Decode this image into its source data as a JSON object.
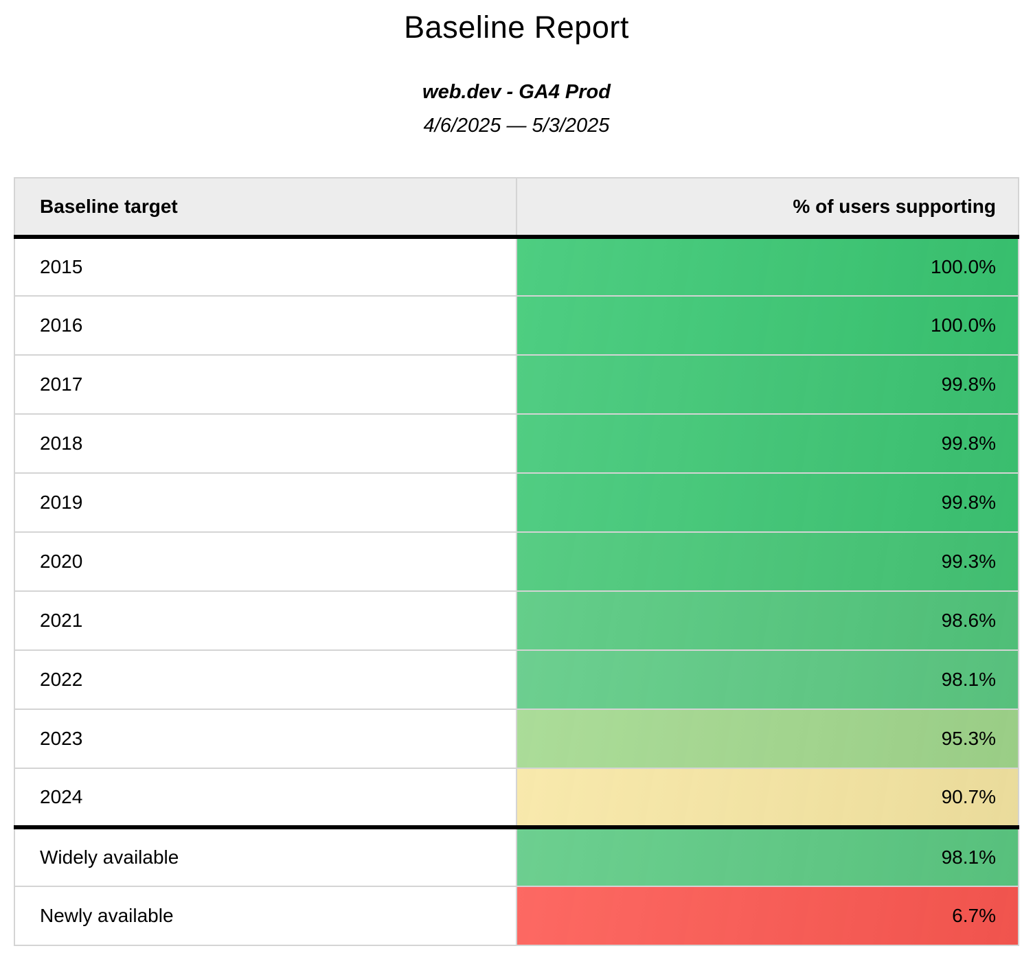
{
  "report": {
    "title": "Baseline Report",
    "subtitle": "web.dev - GA4 Prod",
    "date_range": "4/6/2025 — 5/3/2025"
  },
  "table": {
    "columns": [
      "Baseline target",
      "% of users supporting"
    ],
    "rows": [
      {
        "target": "2015",
        "value": "100.0%",
        "color": "#3ac873",
        "group": "year"
      },
      {
        "target": "2016",
        "value": "100.0%",
        "color": "#3ac873",
        "group": "year"
      },
      {
        "target": "2017",
        "value": "99.8%",
        "color": "#3dc774",
        "group": "year"
      },
      {
        "target": "2018",
        "value": "99.8%",
        "color": "#3dc774",
        "group": "year"
      },
      {
        "target": "2019",
        "value": "99.8%",
        "color": "#3dc774",
        "group": "year"
      },
      {
        "target": "2020",
        "value": "99.3%",
        "color": "#45c776",
        "group": "year"
      },
      {
        "target": "2021",
        "value": "98.6%",
        "color": "#53c87d",
        "group": "year"
      },
      {
        "target": "2022",
        "value": "98.1%",
        "color": "#5cca83",
        "group": "year"
      },
      {
        "target": "2023",
        "value": "95.3%",
        "color": "#a2d88d",
        "group": "year"
      },
      {
        "target": "2024",
        "value": "90.7%",
        "color": "#f7e7a3",
        "group": "year"
      },
      {
        "target": "Widely available",
        "value": "98.1%",
        "color": "#5cca83",
        "group": "summary",
        "divider_above": true
      },
      {
        "target": "Newly available",
        "value": "6.7%",
        "color": "#fd5851",
        "group": "summary"
      }
    ]
  },
  "status_colors": {
    "high_green": "#3ac873",
    "mid_green": "#5cca83",
    "light_green": "#a2d88d",
    "warning_yellow": "#f7e7a3",
    "alert_red": "#fd5851",
    "header_gray": "#ededed"
  }
}
